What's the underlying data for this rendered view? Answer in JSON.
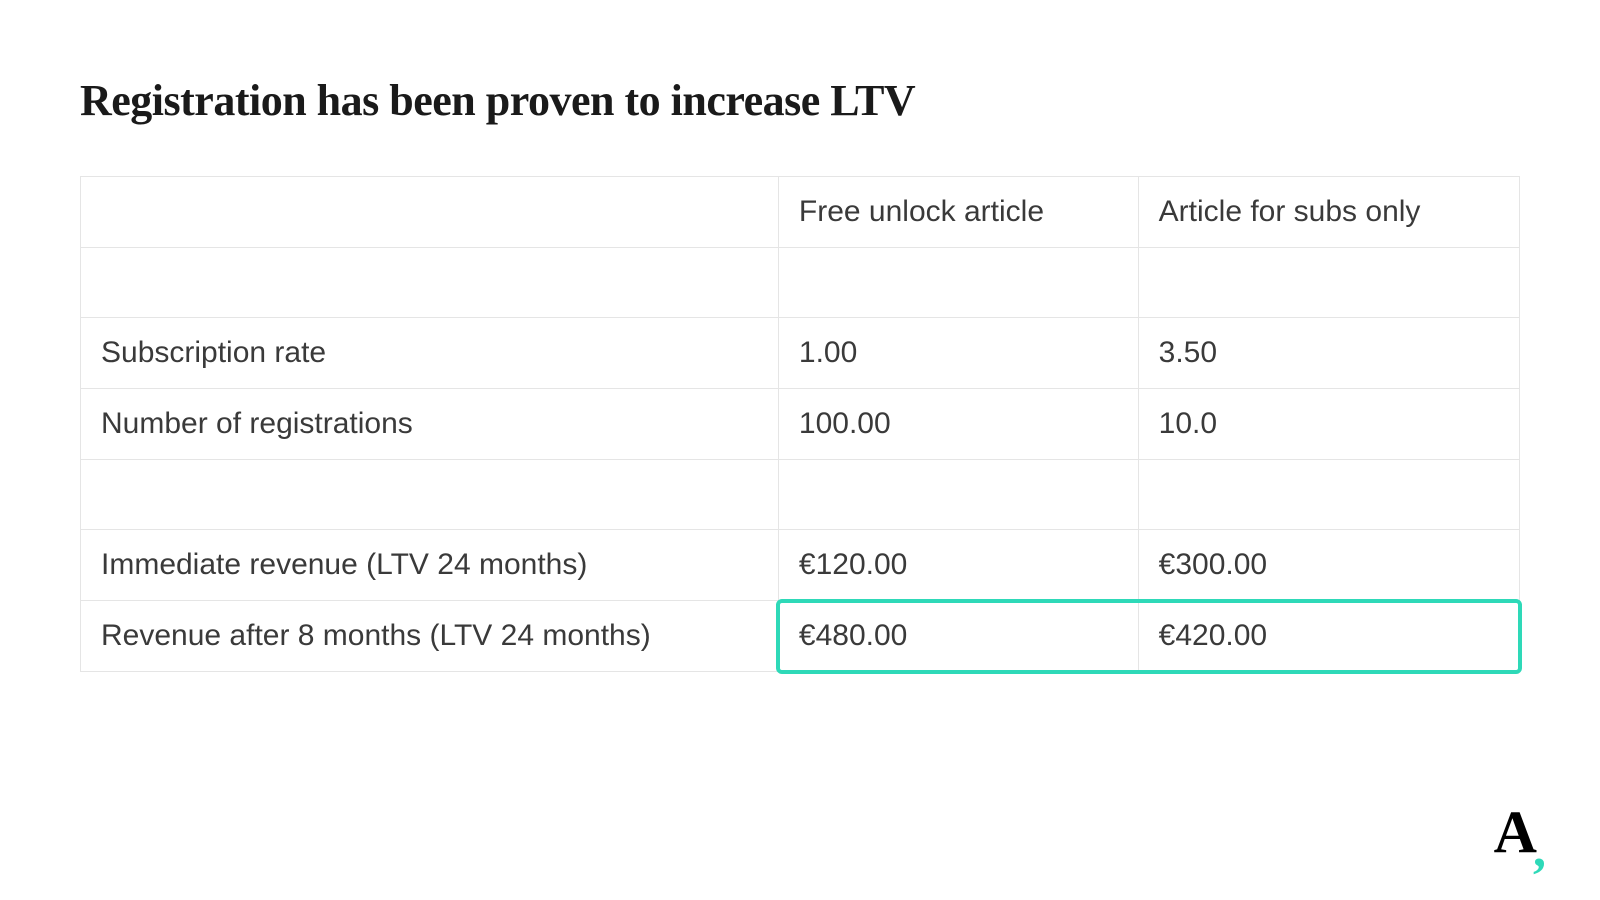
{
  "title": "Registration has been proven to increase LTV",
  "table": {
    "columns": [
      "",
      "Free unlock article",
      "Article for subs only"
    ],
    "rows": [
      {
        "label": "Subscription rate",
        "a": "1.00",
        "b": "3.50"
      },
      {
        "label": "Number of registrations",
        "a": "100.00",
        "b": "10.0"
      },
      {
        "label": "Immediate revenue (LTV 24 months)",
        "a": "€120.00",
        "b": "€300.00"
      },
      {
        "label": "Revenue after 8 months (LTV 24 months)",
        "a": "€480.00",
        "b": "€420.00"
      }
    ],
    "border_color": "#e5e5e5",
    "text_color": "#3a3a3a",
    "header_fontsize": 30,
    "cell_fontsize": 30
  },
  "highlight": {
    "color": "#2ed9b8",
    "border_width": 4
  },
  "logo": {
    "letter": "A",
    "comma": ",",
    "comma_color": "#2ed9b8"
  }
}
